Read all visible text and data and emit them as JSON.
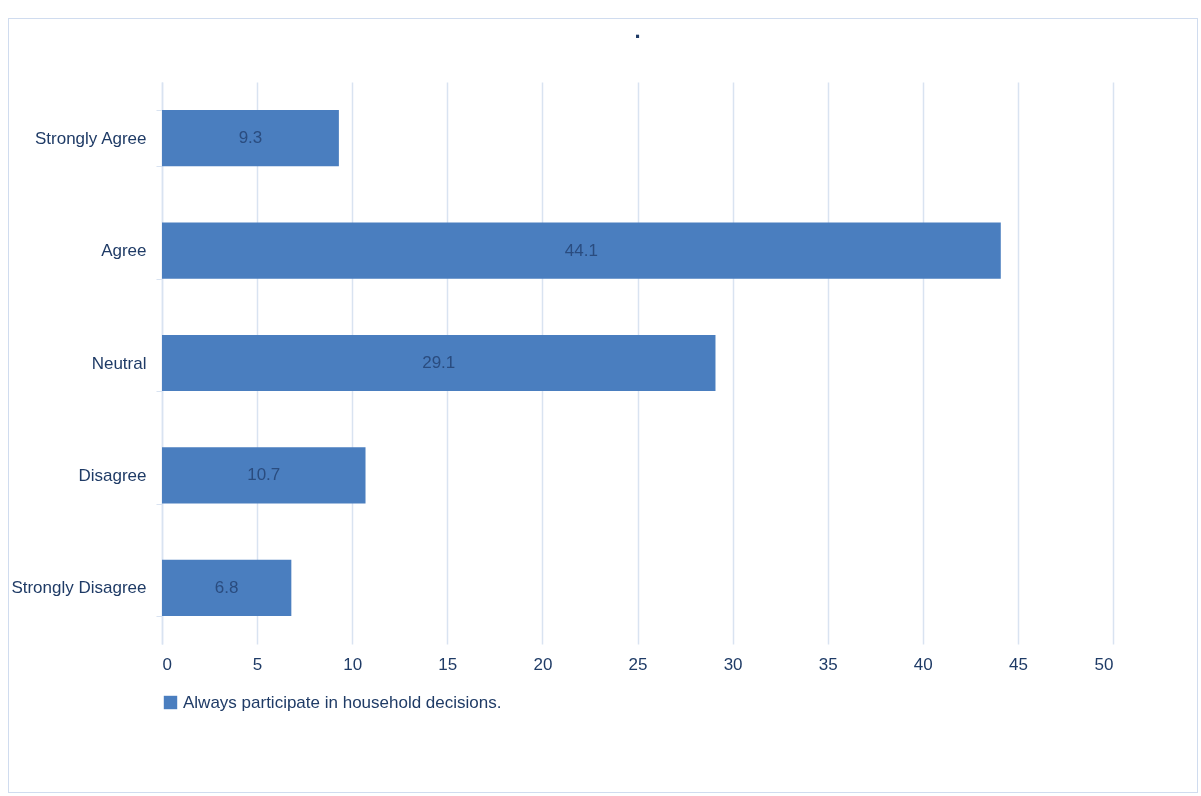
{
  "chart_data": {
    "type": "bar",
    "orientation": "horizontal",
    "title": ".",
    "categories": [
      "Strongly Agree",
      "Agree",
      "Neutral",
      "Disagree",
      "Strongly Disagree"
    ],
    "series": [
      {
        "name": "Always participate in household decisions.",
        "color": "#4a7ebf",
        "values": [
          9.3,
          44.1,
          29.1,
          10.7,
          6.8
        ]
      }
    ],
    "xlim": [
      0,
      50
    ],
    "xticks": [
      0,
      5,
      10,
      15,
      20,
      25,
      30,
      35,
      40,
      45,
      50
    ],
    "grid": "x",
    "legend": "bottom",
    "data_labels": true
  }
}
